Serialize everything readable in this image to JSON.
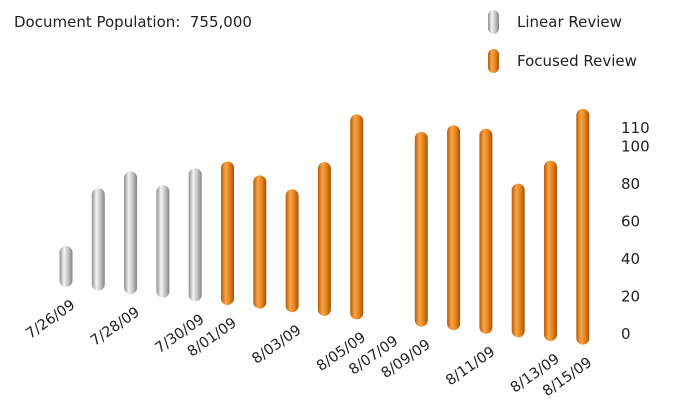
{
  "chart_data": {
    "type": "bar",
    "title": "Document Population:  755,000",
    "legend": {
      "placement": "top-right",
      "entries": [
        {
          "name": "Linear Review",
          "color": "#c8c8c8",
          "icon": "gray-cylinder-icon"
        },
        {
          "name": "Focused Review",
          "color": "#e8841c",
          "icon": "orange-cylinder-icon"
        }
      ]
    },
    "ylim": [
      0,
      110
    ],
    "yticks": [
      0,
      20,
      40,
      60,
      80,
      100,
      110
    ],
    "grid": false,
    "series_colors": {
      "Linear Review": "#c8c8c8",
      "Focused Review": "#e8841c"
    },
    "bars": [
      {
        "label": "7/26/09",
        "value": 20,
        "series": "Linear Review"
      },
      {
        "label": "",
        "value": 50,
        "series": "Linear Review"
      },
      {
        "label": "7/28/09",
        "value": 60,
        "series": "Linear Review"
      },
      {
        "label": "",
        "value": 55,
        "series": "Linear Review"
      },
      {
        "label": "7/30/09",
        "value": 65,
        "series": "Linear Review"
      },
      {
        "label": "8/01/09",
        "value": 70,
        "series": "Focused Review"
      },
      {
        "label": "",
        "value": 65,
        "series": "Focused Review"
      },
      {
        "label": "8/03/09",
        "value": 60,
        "series": "Focused Review"
      },
      {
        "label": "",
        "value": 75,
        "series": "Focused Review"
      },
      {
        "label": "8/05/09",
        "value": 100,
        "series": "Focused Review"
      },
      {
        "label": "8/07/09",
        "value": null,
        "series": null
      },
      {
        "label": "8/09/09",
        "value": 95,
        "series": "Focused Review"
      },
      {
        "label": "",
        "value": 100,
        "series": "Focused Review"
      },
      {
        "label": "8/11/09",
        "value": 100,
        "series": "Focused Review"
      },
      {
        "label": "",
        "value": 75,
        "series": "Focused Review"
      },
      {
        "label": "8/13/09",
        "value": 88,
        "series": "Focused Review"
      },
      {
        "label": "8/15/09",
        "value": 115,
        "series": "Focused Review"
      }
    ]
  }
}
